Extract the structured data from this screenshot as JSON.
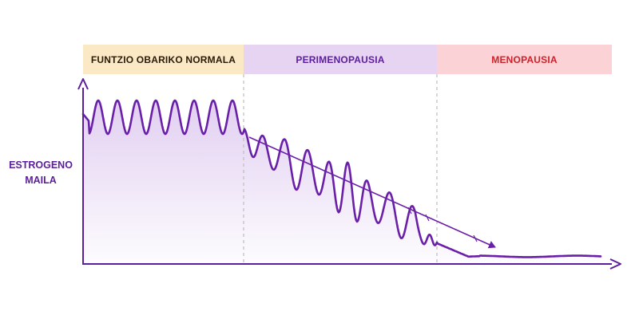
{
  "phases": [
    {
      "label": "FUNTZIO OBARIKO NORMALA",
      "fill": "#fbe9c6",
      "text_color": "#2a1a08"
    },
    {
      "label": "PERIMENOPAUSIA",
      "fill": "#e7d3f2",
      "text_color": "#5b1e9c"
    },
    {
      "label": "MENOPAUSIA",
      "fill": "#fbd3d6",
      "text_color": "#d0202a"
    }
  ],
  "y_axis_label": {
    "line1": "ESTROGENO",
    "line2": "MAILA"
  },
  "colors": {
    "curve": "#6a1fa8",
    "axis": "#5b1e9c",
    "divider": "#bdbdbd",
    "area_top": "#c9a9e6"
  }
}
